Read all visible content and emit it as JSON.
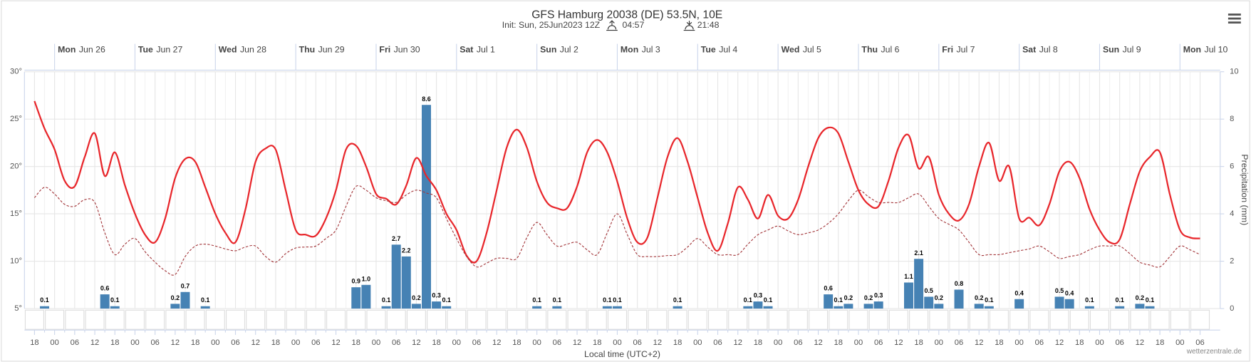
{
  "chart_data": {
    "type": "meteogram",
    "title": "GFS Hamburg 20038 (DE) 53.5N, 10E",
    "subtitle": "Init: Sun, 25Jun2023 12Z",
    "sunrise": "04:57",
    "sunset": "21:48",
    "xlabel": "Local time (UTC+2)",
    "y2label": "Precipitation (mm)",
    "credit": "wetterzentrale.de",
    "days": [
      {
        "weekday": "Mon",
        "date": "Jun 26"
      },
      {
        "weekday": "Tue",
        "date": "Jun 27"
      },
      {
        "weekday": "Wed",
        "date": "Jun 28"
      },
      {
        "weekday": "Thu",
        "date": "Jun 29"
      },
      {
        "weekday": "Fri",
        "date": "Jun 30"
      },
      {
        "weekday": "Sat",
        "date": "Jul 1"
      },
      {
        "weekday": "Sun",
        "date": "Jul 2"
      },
      {
        "weekday": "Mon",
        "date": "Jul 3"
      },
      {
        "weekday": "Tue",
        "date": "Jul 4"
      },
      {
        "weekday": "Wed",
        "date": "Jul 5"
      },
      {
        "weekday": "Thu",
        "date": "Jul 6"
      },
      {
        "weekday": "Fri",
        "date": "Jul 7"
      },
      {
        "weekday": "Sat",
        "date": "Jul 8"
      },
      {
        "weekday": "Sun",
        "date": "Jul 9"
      },
      {
        "weekday": "Mon",
        "date": "Jul 10"
      }
    ],
    "categories": [
      "18",
      null,
      "00",
      null,
      "06",
      null,
      "12",
      null,
      "18",
      null,
      "00",
      null,
      "06",
      null,
      "12",
      null,
      "18",
      null,
      "00",
      null,
      "06",
      null,
      "12",
      null,
      "18",
      null,
      "00",
      null,
      "06",
      null,
      "12",
      null,
      "18",
      null,
      "00",
      null,
      "06",
      null,
      "12",
      null,
      "18",
      null,
      "00",
      null,
      "06",
      null,
      "12",
      null,
      "18",
      null,
      "00",
      null,
      "06",
      null,
      "12",
      null,
      "18",
      null,
      "00",
      null,
      "06",
      null,
      "12",
      null,
      "18",
      null,
      "00",
      null,
      "06",
      null,
      "12",
      null,
      "18",
      null,
      "00",
      null,
      "06",
      null,
      "12",
      null,
      "18",
      null,
      "00",
      null,
      "06",
      null,
      "12",
      null,
      "18",
      null,
      "00",
      null,
      "06",
      null,
      "12",
      null,
      "18",
      null,
      "00",
      null,
      "06",
      null,
      "12",
      null,
      "18",
      null,
      "00",
      null,
      "06",
      null,
      "12",
      null,
      "18",
      null,
      "00",
      null,
      "06"
    ],
    "ylim": [
      5,
      30
    ],
    "yticks": [
      {
        "value": 5,
        "label": "5°"
      },
      {
        "value": 10,
        "label": "10°"
      },
      {
        "value": 15,
        "label": "15°"
      },
      {
        "value": 20,
        "label": "20°"
      },
      {
        "value": 25,
        "label": "25°"
      },
      {
        "value": 30,
        "label": "30°"
      }
    ],
    "y2lim": [
      0,
      10
    ],
    "y2ticks": [
      0,
      2,
      4,
      6,
      8,
      10
    ],
    "grid": true,
    "series": [
      {
        "type": "line",
        "color": "#e8262b",
        "dashed": false,
        "values": [
          26.9,
          24.0,
          21.8,
          18.5,
          17.9,
          21.0,
          23.5,
          19.0,
          21.5,
          18.0,
          15.0,
          12.8,
          12.0,
          14.5,
          18.8,
          20.8,
          20.5,
          17.8,
          15.0,
          13.0,
          12.0,
          15.5,
          20.5,
          21.9,
          21.8,
          17.5,
          13.3,
          12.8,
          12.7,
          14.5,
          17.5,
          21.8,
          22.2,
          20.0,
          17.1,
          16.6,
          16.0,
          18.0,
          20.9,
          19.0,
          17.5,
          15.0,
          13.3,
          10.6,
          10.0,
          13.0,
          17.5,
          22.0,
          23.9,
          22.0,
          18.4,
          16.2,
          15.6,
          15.6,
          17.9,
          21.5,
          22.8,
          21.5,
          18.4,
          14.5,
          12.0,
          12.5,
          16.7,
          21.0,
          23.0,
          20.5,
          16.7,
          13.0,
          11.1,
          14.0,
          17.8,
          16.5,
          14.5,
          17.0,
          14.8,
          14.5,
          16.5,
          20.0,
          23.0,
          24.1,
          23.5,
          20.5,
          17.5,
          16.0,
          15.8,
          18.5,
          22.0,
          23.3,
          19.8,
          21.0,
          17.0,
          15.0,
          14.3,
          16.0,
          20.0,
          22.5,
          18.5,
          20.0,
          14.5,
          14.6,
          13.8,
          16.0,
          19.5,
          20.5,
          18.8,
          15.5,
          13.3,
          12.0,
          12.3,
          16.0,
          19.5,
          21.0,
          21.5,
          17.0,
          13.3,
          12.5,
          12.4
        ]
      },
      {
        "type": "line",
        "color": "#a3363a",
        "dashed": true,
        "values": [
          16.7,
          17.8,
          17.1,
          16.0,
          15.8,
          16.5,
          16.2,
          13.0,
          10.7,
          11.8,
          12.4,
          11.0,
          9.9,
          9.0,
          8.6,
          10.5,
          11.6,
          11.8,
          11.6,
          11.3,
          11.1,
          11.5,
          11.6,
          10.5,
          9.9,
          10.8,
          11.4,
          11.5,
          11.6,
          12.4,
          13.3,
          15.8,
          17.9,
          17.5,
          16.7,
          16.4,
          16.2,
          17.0,
          17.5,
          17.2,
          16.7,
          14.5,
          12.4,
          10.5,
          9.4,
          9.8,
          10.3,
          10.3,
          10.3,
          12.5,
          14.1,
          12.8,
          11.6,
          11.8,
          12.0,
          11.2,
          10.7,
          13.0,
          15.0,
          12.8,
          10.7,
          10.5,
          10.5,
          10.6,
          10.7,
          11.5,
          12.4,
          11.5,
          10.7,
          10.7,
          10.7,
          11.8,
          12.8,
          13.3,
          13.7,
          13.2,
          12.8,
          13.0,
          13.3,
          14.0,
          15.0,
          16.4,
          17.5,
          16.8,
          16.2,
          16.2,
          16.2,
          16.7,
          17.1,
          15.8,
          14.5,
          13.9,
          13.3,
          12.0,
          10.7,
          10.7,
          10.7,
          10.9,
          11.1,
          11.3,
          11.6,
          11.0,
          10.3,
          10.5,
          10.7,
          11.2,
          11.6,
          11.6,
          11.6,
          10.8,
          9.9,
          9.6,
          9.4,
          10.5,
          11.6,
          11.2,
          10.7
        ]
      },
      {
        "type": "bar",
        "color": "#4682b4",
        "axis": "y2",
        "values": [
          null,
          0.1,
          null,
          null,
          null,
          null,
          null,
          0.6,
          0.1,
          null,
          null,
          null,
          null,
          null,
          0.2,
          0.7,
          null,
          0.1,
          null,
          null,
          null,
          null,
          null,
          null,
          null,
          null,
          null,
          null,
          null,
          null,
          null,
          null,
          0.9,
          1.0,
          null,
          0.1,
          2.7,
          2.2,
          0.2,
          8.6,
          0.3,
          0.1,
          null,
          null,
          null,
          null,
          null,
          null,
          null,
          null,
          0.1,
          null,
          0.1,
          null,
          null,
          null,
          null,
          0.1,
          0.1,
          null,
          null,
          null,
          null,
          null,
          0.1,
          null,
          null,
          null,
          null,
          null,
          null,
          0.1,
          0.3,
          0.1,
          null,
          null,
          null,
          null,
          null,
          0.6,
          0.1,
          0.2,
          null,
          0.2,
          0.3,
          null,
          null,
          1.1,
          2.1,
          0.5,
          0.2,
          null,
          0.8,
          null,
          0.2,
          0.1,
          null,
          null,
          0.4,
          null,
          null,
          null,
          0.5,
          0.4,
          null,
          0.1,
          null,
          null,
          0.1,
          null,
          0.2,
          0.1,
          null,
          null,
          null,
          null,
          null
        ],
        "value_labels": [
          null,
          "0.1",
          null,
          null,
          null,
          null,
          null,
          "0.6",
          "0.1",
          null,
          null,
          null,
          null,
          null,
          "0.2",
          "0.7",
          null,
          "0.1",
          null,
          null,
          null,
          null,
          null,
          null,
          null,
          null,
          null,
          null,
          null,
          null,
          null,
          null,
          "0.9",
          "1.0",
          null,
          "0.1",
          "2.7",
          "2.2",
          "0.2",
          "8.6",
          "0.3",
          "0.1",
          null,
          null,
          null,
          null,
          null,
          null,
          null,
          null,
          "0.1",
          null,
          "0.1",
          null,
          null,
          null,
          null,
          "0.1",
          "0.1",
          null,
          null,
          null,
          null,
          null,
          "0.1",
          null,
          null,
          null,
          null,
          null,
          null,
          "0.1",
          "0.3",
          "0.1",
          null,
          null,
          null,
          null,
          null,
          "0.6",
          "0.1",
          "0.2",
          null,
          "0.2",
          "0.3",
          null,
          null,
          "1.1",
          "2.1",
          "0.5",
          "0.2",
          null,
          "0.8",
          null,
          "0.2",
          "0.1",
          null,
          null,
          "0.4",
          null,
          null,
          null,
          "0.5",
          "0.4",
          null,
          "0.1",
          null,
          null,
          "0.1",
          null,
          "0.2",
          "0.1",
          null,
          null,
          null,
          null,
          null
        ]
      }
    ]
  }
}
